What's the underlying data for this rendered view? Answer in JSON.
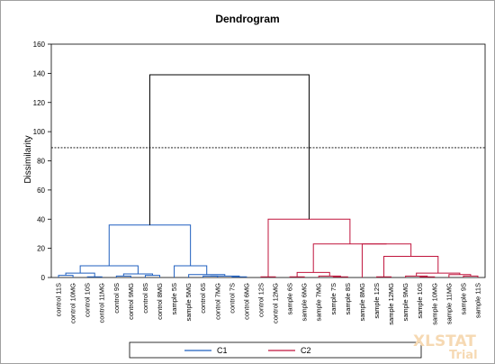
{
  "chart_data": {
    "type": "dendrogram",
    "title": "Dendrogram",
    "ylabel": "Dissimilarity",
    "ylim": [
      0,
      160
    ],
    "y_ticks": [
      0,
      20,
      40,
      60,
      80,
      100,
      120,
      140,
      160
    ],
    "truncation_level": 89,
    "leaves": [
      "control 11S",
      "control 10MG",
      "control 10S",
      "control 11MG",
      "control 9S",
      "control 9MG",
      "control 8S",
      "control 8MG",
      "sample 5S",
      "sample 5MG",
      "control 6S",
      "control 7MG",
      "control 7S",
      "control 6MG",
      "control 12S",
      "control 12MG",
      "sample 6S",
      "sample 6MG",
      "sample 7MG",
      "sample 7S",
      "sample 8S",
      "sample 8MG",
      "sample 12S",
      "sample 12MG",
      "sample 9MG",
      "sample 10S",
      "sample 10MG",
      "sample 11MG",
      "sample 9S",
      "sample 11S"
    ],
    "merges": [
      {
        "a": 0,
        "b": 1,
        "height": 1.5,
        "cluster": "C1"
      },
      {
        "a": 2,
        "b": 3,
        "height": 0.5,
        "cluster": "C1"
      },
      {
        "a": 4,
        "b": 5,
        "height": 1.0,
        "cluster": "C1"
      },
      {
        "a": 6,
        "b": 7,
        "height": 1.5,
        "cluster": "C1"
      },
      {
        "a": 32,
        "b": 33,
        "height": 2.5,
        "cluster": "C1"
      },
      {
        "a": 30,
        "b": 31,
        "height": 3.0,
        "cluster": "C1"
      },
      {
        "a": 35,
        "b": 34,
        "height": 8.0,
        "cluster": "C1"
      },
      {
        "a": 10,
        "b": 11,
        "height": 1.0,
        "cluster": "C1"
      },
      {
        "a": 12,
        "b": 13,
        "height": 0.5,
        "cluster": "C1"
      },
      {
        "a": 37,
        "b": 38,
        "height": 1.0,
        "cluster": "C1"
      },
      {
        "a": 9,
        "b": 39,
        "height": 2.0,
        "cluster": "C1"
      },
      {
        "a": 8,
        "b": 40,
        "height": 8.0,
        "cluster": "C1"
      },
      {
        "a": 36,
        "b": 41,
        "height": 36.0,
        "cluster": "C1"
      },
      {
        "a": 14,
        "b": 15,
        "height": 0.5,
        "cluster": "C2"
      },
      {
        "a": 16,
        "b": 17,
        "height": 0.5,
        "cluster": "C2"
      },
      {
        "a": 19,
        "b": 20,
        "height": 0.5,
        "cluster": "C2"
      },
      {
        "a": 18,
        "b": 45,
        "height": 1.0,
        "cluster": "C2"
      },
      {
        "a": 44,
        "b": 46,
        "height": 3.5,
        "cluster": "C2"
      },
      {
        "a": 22,
        "b": 23,
        "height": 0.5,
        "cluster": "C2"
      },
      {
        "a": 25,
        "b": 26,
        "height": 0.5,
        "cluster": "C2"
      },
      {
        "a": 24,
        "b": 49,
        "height": 1.0,
        "cluster": "C2"
      },
      {
        "a": 28,
        "b": 29,
        "height": 1.0,
        "cluster": "C2"
      },
      {
        "a": 27,
        "b": 51,
        "height": 2.0,
        "cluster": "C2"
      },
      {
        "a": 50,
        "b": 52,
        "height": 3.0,
        "cluster": "C2"
      },
      {
        "a": 48,
        "b": 53,
        "height": 14.5,
        "cluster": "C2"
      },
      {
        "a": 21,
        "b": 54,
        "height": 23.0,
        "cluster": "C2"
      },
      {
        "a": 47,
        "b": 55,
        "height": 23.0,
        "cluster": "C2"
      },
      {
        "a": 43,
        "b": 56,
        "height": 40.0,
        "cluster": "C2"
      },
      {
        "a": 42,
        "b": 57,
        "height": 139.0,
        "cluster": "root"
      }
    ],
    "legend": [
      {
        "label": "C1",
        "color": "#1f5fbf"
      },
      {
        "label": "C2",
        "color": "#c0143c"
      }
    ],
    "root_color": "#000000",
    "truncation_color": "#000000"
  },
  "watermark": {
    "line1": "XLSTAT",
    "line2": "Trial"
  }
}
